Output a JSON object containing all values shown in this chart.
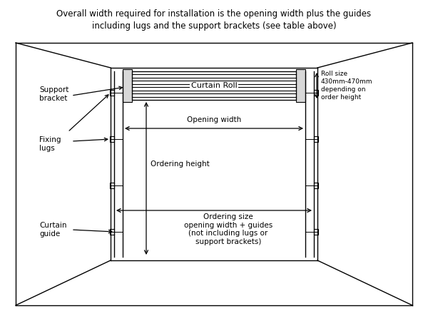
{
  "bg_color": "#ffffff",
  "line_color": "#000000",
  "title_text": "Overall width required for installation is the opening width plus the guides\nincluding lugs and the support brackets (see table above)",
  "title_fontsize": 8.5,
  "roll_size_text": "Roll size\n430mm-470mm\ndepending on\norder height",
  "curtain_roll_label": "Curtain Roll",
  "opening_width_label": "Opening width",
  "ordering_height_label": "Ordering height",
  "ordering_size_label": "Ordering size\nopening width + guides\n(not including lugs or\nsupport brackets)",
  "support_bracket_label": "Support\nbracket",
  "fixing_lugs_label": "Fixing\nlugs",
  "curtain_guide_label": "Curtain\nguide",
  "label_fontsize": 7.5,
  "roll_label_fontsize": 8.0
}
